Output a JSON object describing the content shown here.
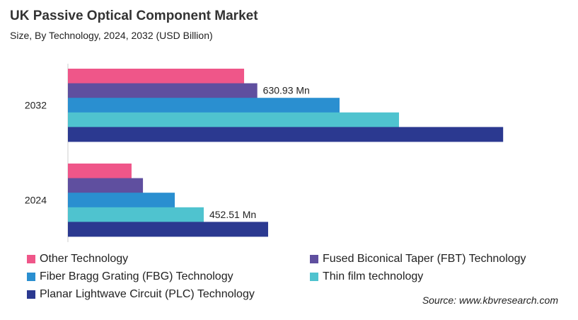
{
  "title": "UK Passive Optical Component Market",
  "subtitle": "Size, By Technology, 2024, 2032 (USD Billion)",
  "source": "Source: www.kbvresearch.com",
  "chart_data": {
    "type": "bar",
    "orientation": "horizontal",
    "categories": [
      "2032",
      "2024"
    ],
    "series": [
      {
        "name": "Other Technology",
        "color": "#ef5689",
        "values": [
          587,
          212
        ]
      },
      {
        "name": "Fused Biconical Taper (FBT) Technology",
        "color": "#5f4f9f",
        "values": [
          630.93,
          250
        ]
      },
      {
        "name": "Fiber Bragg Grating (FBG) Technology",
        "color": "#2a8fd0",
        "values": [
          905,
          356
        ]
      },
      {
        "name": "Thin film technology",
        "color": "#4fc3cf",
        "values": [
          1103,
          452.51
        ]
      },
      {
        "name": "Planar Lightwave Circuit (PLC) Technology",
        "color": "#2b3990",
        "values": [
          1450,
          667
        ]
      }
    ],
    "annotations": [
      {
        "category": "2032",
        "series": "Fused Biconical Taper (FBT) Technology",
        "text": "630.93 Mn"
      },
      {
        "category": "2024",
        "series": "Thin film technology",
        "text": "452.51 Mn"
      }
    ],
    "xlim": [
      0,
      1500
    ],
    "grid": false,
    "legend": "bottom"
  }
}
